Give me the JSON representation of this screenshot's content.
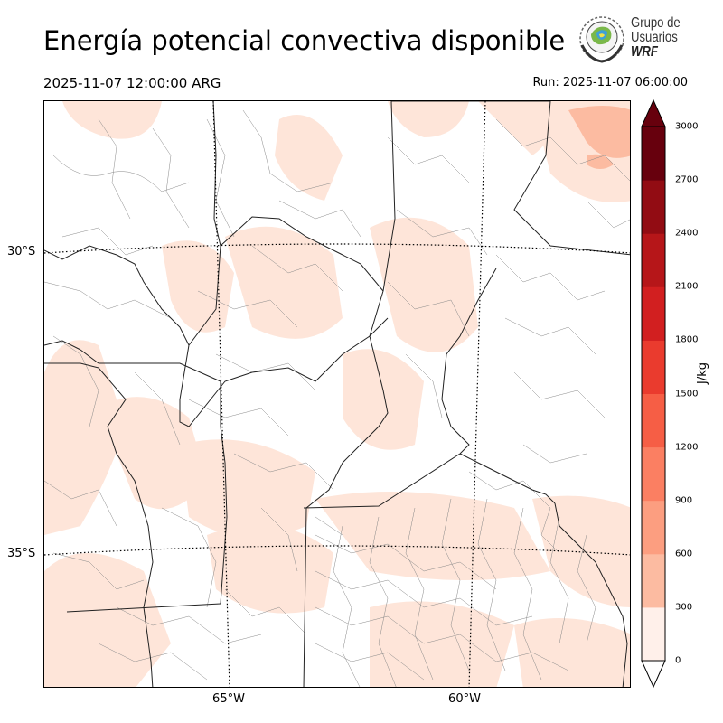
{
  "header": {
    "title": "Energía potencial convectiva disponible",
    "valid_time": "2025-11-07 12:00:00 ARG",
    "run_time": "Run: 2025-11-07 06:00:00"
  },
  "logo": {
    "line1": "Grupo de",
    "line2": "Usuarios",
    "line3": "WRF"
  },
  "map": {
    "lat_labels": [
      "30°S",
      "35°S"
    ],
    "lon_labels": [
      "65°W",
      "60°W"
    ],
    "field_fill_color": "#fee5d9",
    "field_dark_color": "#fcbba1"
  },
  "colorbar": {
    "unit": "J/kg",
    "ticks": [
      "3000",
      "2700",
      "2400",
      "2100",
      "1800",
      "1500",
      "1200",
      "900",
      "600",
      "300",
      "0"
    ],
    "colors": [
      "#fff0ea",
      "#fcd9cc",
      "#fcbba1",
      "#fc9e80",
      "#fb7f62",
      "#f65e45",
      "#ea3b2e",
      "#d21f20",
      "#b61619",
      "#920c13",
      "#67000d"
    ],
    "over_color": "#67000d",
    "under_color": "#ffffff"
  }
}
